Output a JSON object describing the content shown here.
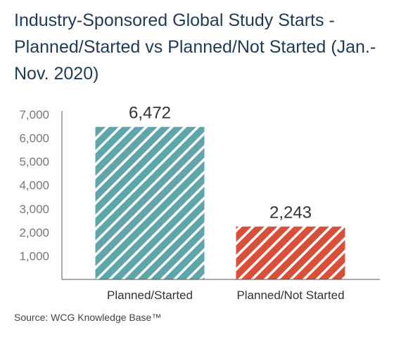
{
  "title": "Industry-Sponsored Global Study Starts - Planned/Started vs Planned/Not Started (Jan.-Nov. 2020)",
  "source": "Source: WCG Knowledge Base™",
  "chart_data": {
    "type": "bar",
    "categories": [
      "Planned/Started",
      "Planned/Not Started"
    ],
    "values": [
      6472,
      2243
    ],
    "value_labels": [
      "6,472",
      "2,243"
    ],
    "colors": [
      "#5ea6aa",
      "#d9503a"
    ],
    "pattern": "diagonal-stripes",
    "ylim": [
      0,
      7000
    ],
    "yticks": [
      1000,
      2000,
      3000,
      4000,
      5000,
      6000,
      7000
    ],
    "ytick_labels": [
      "1,000",
      "2,000",
      "3,000",
      "4,000",
      "5,000",
      "6,000",
      "7,000"
    ],
    "xlabel": "",
    "ylabel": "",
    "grid": false,
    "legend": "none"
  }
}
